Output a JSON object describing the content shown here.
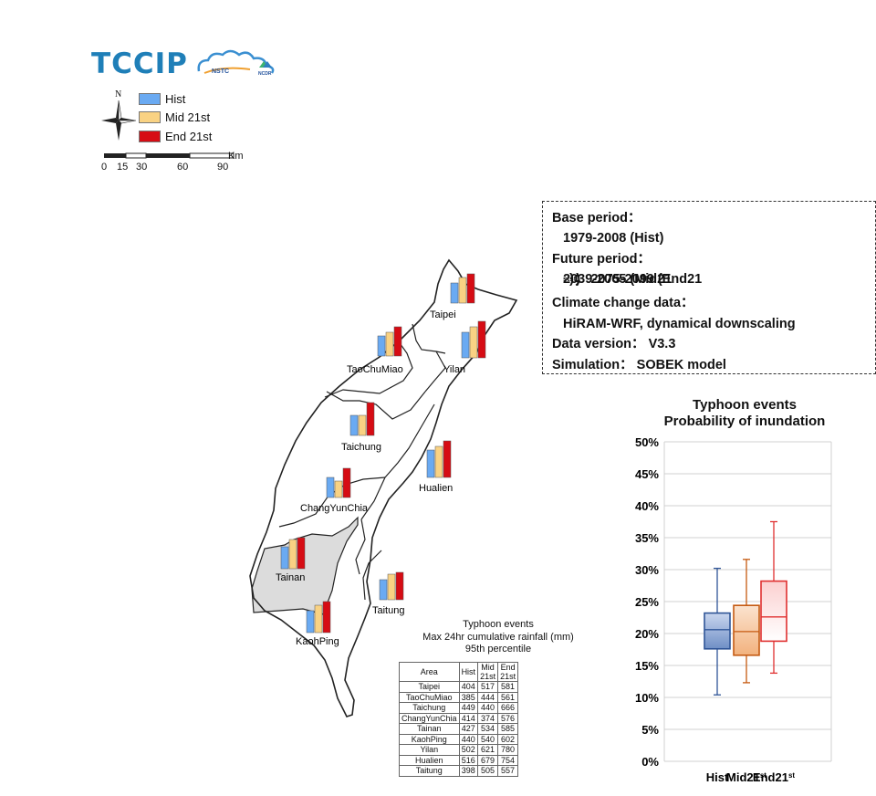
{
  "logo": {
    "text": "TCCIP",
    "partner1": "NSTC",
    "partner2": "NCDR"
  },
  "legend": {
    "compass_label": "N",
    "items": [
      {
        "label": "Hist",
        "color": "#6aaaf2"
      },
      {
        "label": "Mid 21st",
        "color": "#f9d283"
      },
      {
        "label": "End 21st",
        "color": "#d60c14"
      }
    ]
  },
  "scale_bar": {
    "unit": "Km",
    "ticks": [
      "0",
      "15",
      "30",
      "60",
      "90"
    ]
  },
  "regions": [
    {
      "name": "Taipei",
      "shaded": false
    },
    {
      "name": "TaoChuMiao",
      "shaded": false
    },
    {
      "name": "Yilan",
      "shaded": false
    },
    {
      "name": "Taichung",
      "shaded": false
    },
    {
      "name": "Hualien",
      "shaded": false
    },
    {
      "name": "ChangYunChia",
      "shaded": false
    },
    {
      "name": "Tainan",
      "shaded": true
    },
    {
      "name": "Taitung",
      "shaded": false
    },
    {
      "name": "KaohPing",
      "shaded": false
    }
  ],
  "info": {
    "base_label": "Base period：",
    "base_value": "1979-2008 (Hist)",
    "future_label": "Future period：",
    "future_mid_pre": "2039-2065 (Mid21",
    "future_mid_sup": "st",
    "future_mid_post": ")； 2075-2099 (End21",
    "future_end_sup": "st",
    "future_end_post": ")",
    "climate_label": "Climate change data：",
    "climate_value": "HiRAM-WRF, dynamical downscaling",
    "version": "Data version： V3.3",
    "simulation": "Simulation： SOBEK model"
  },
  "table": {
    "title_lines": [
      "Typhoon events",
      "Max 24hr cumulative rainfall (mm)",
      "95th percentile"
    ],
    "headers": [
      "Area",
      "Hist",
      "Mid 21st",
      "End 21st"
    ],
    "rows": [
      [
        "Taipei",
        "404",
        "517",
        "581"
      ],
      [
        "TaoChuMiao",
        "385",
        "444",
        "561"
      ],
      [
        "Taichung",
        "449",
        "440",
        "666"
      ],
      [
        "ChangYunChia",
        "414",
        "374",
        "576"
      ],
      [
        "Tainan",
        "427",
        "534",
        "585"
      ],
      [
        "KaohPing",
        "440",
        "540",
        "602"
      ],
      [
        "Yilan",
        "502",
        "621",
        "780"
      ],
      [
        "Hualien",
        "516",
        "679",
        "754"
      ],
      [
        "Taitung",
        "398",
        "505",
        "557"
      ]
    ]
  },
  "chart_data": {
    "type": "box",
    "title": [
      "Typhoon events",
      "Probability of inundation"
    ],
    "ylim": [
      0,
      50
    ],
    "y_ticks": [
      "0%",
      "5%",
      "10%",
      "15%",
      "20%",
      "25%",
      "30%",
      "35%",
      "40%",
      "45%",
      "50%"
    ],
    "y_unit": "%",
    "grid": true,
    "series": [
      {
        "label": "Hist",
        "label_sup": "",
        "color": "#2f5597",
        "fill_top": "#c9d6ee",
        "fill_bottom": "#6f8fc6",
        "min": 10.4,
        "q1": 17.6,
        "median": 20.6,
        "q3": 23.2,
        "max": 30.2
      },
      {
        "label": "Mid21",
        "label_sup": "st",
        "color": "#c55a11",
        "fill_top": "#fbe3cf",
        "fill_bottom": "#f2b27e",
        "min": 12.3,
        "q1": 16.6,
        "median": 20.3,
        "q3": 24.4,
        "max": 31.6
      },
      {
        "label": "End21",
        "label_sup": "st",
        "color": "#e03030",
        "fill_top": "#fbd0d0",
        "fill_bottom": "#ffffff",
        "min": 13.8,
        "q1": 18.8,
        "median": 22.6,
        "q3": 28.2,
        "max": 37.5
      }
    ]
  }
}
